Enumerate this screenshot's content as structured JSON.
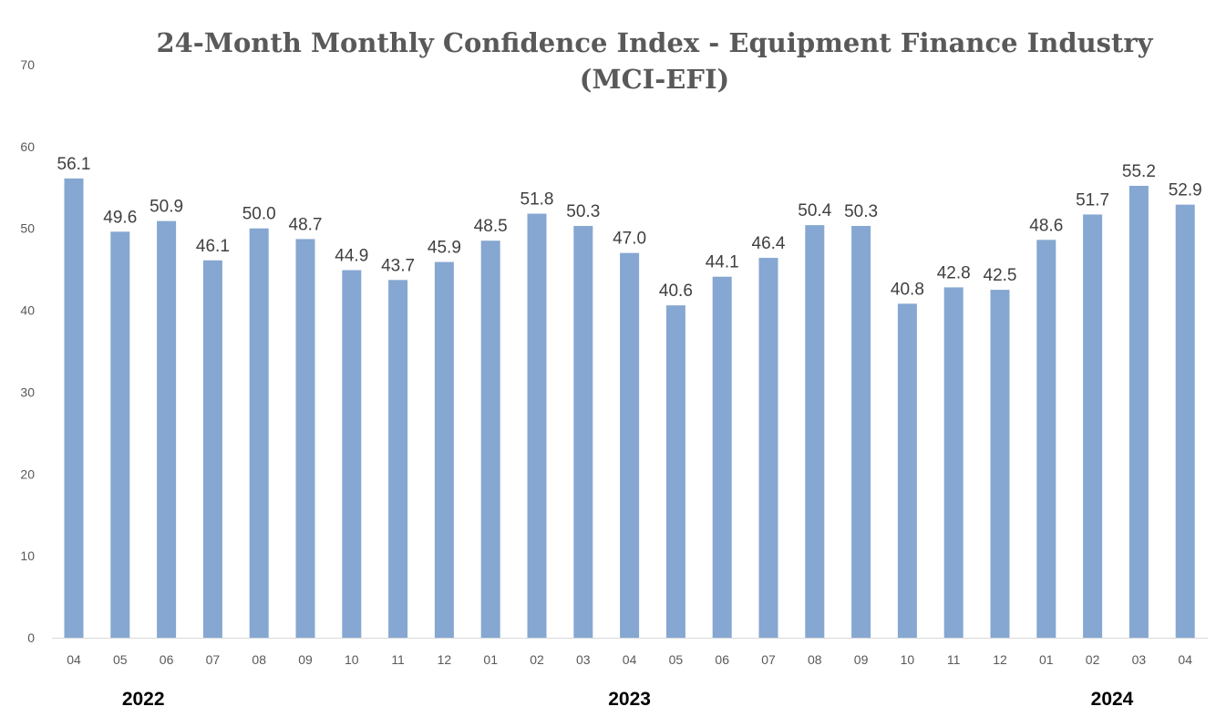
{
  "chart_data": {
    "type": "bar",
    "title_line1": "24-Month Monthly Confidence Index - Equipment Finance Industry",
    "title_line2": "(MCI-EFI)",
    "categories": [
      "04",
      "05",
      "06",
      "07",
      "08",
      "09",
      "10",
      "11",
      "12",
      "01",
      "02",
      "03",
      "04",
      "05",
      "06",
      "07",
      "08",
      "09",
      "10",
      "11",
      "12",
      "01",
      "02",
      "03",
      "04"
    ],
    "values": [
      56.1,
      49.6,
      50.9,
      46.1,
      50.0,
      48.7,
      44.9,
      43.7,
      45.9,
      48.5,
      51.8,
      50.3,
      47.0,
      40.6,
      44.1,
      46.4,
      50.4,
      50.3,
      40.8,
      42.8,
      42.5,
      48.6,
      51.7,
      55.2,
      52.9
    ],
    "years": [
      {
        "label": "2022",
        "index": 1.5
      },
      {
        "label": "2023",
        "index": 12
      },
      {
        "label": "2024",
        "index": 22.5
      }
    ],
    "ylim": [
      0,
      70
    ],
    "yticks": [
      0,
      10,
      20,
      30,
      40,
      50,
      60,
      70
    ],
    "grid": false,
    "legend": "none",
    "bar_color": "#85A7D1",
    "xlabel": "",
    "ylabel": ""
  }
}
